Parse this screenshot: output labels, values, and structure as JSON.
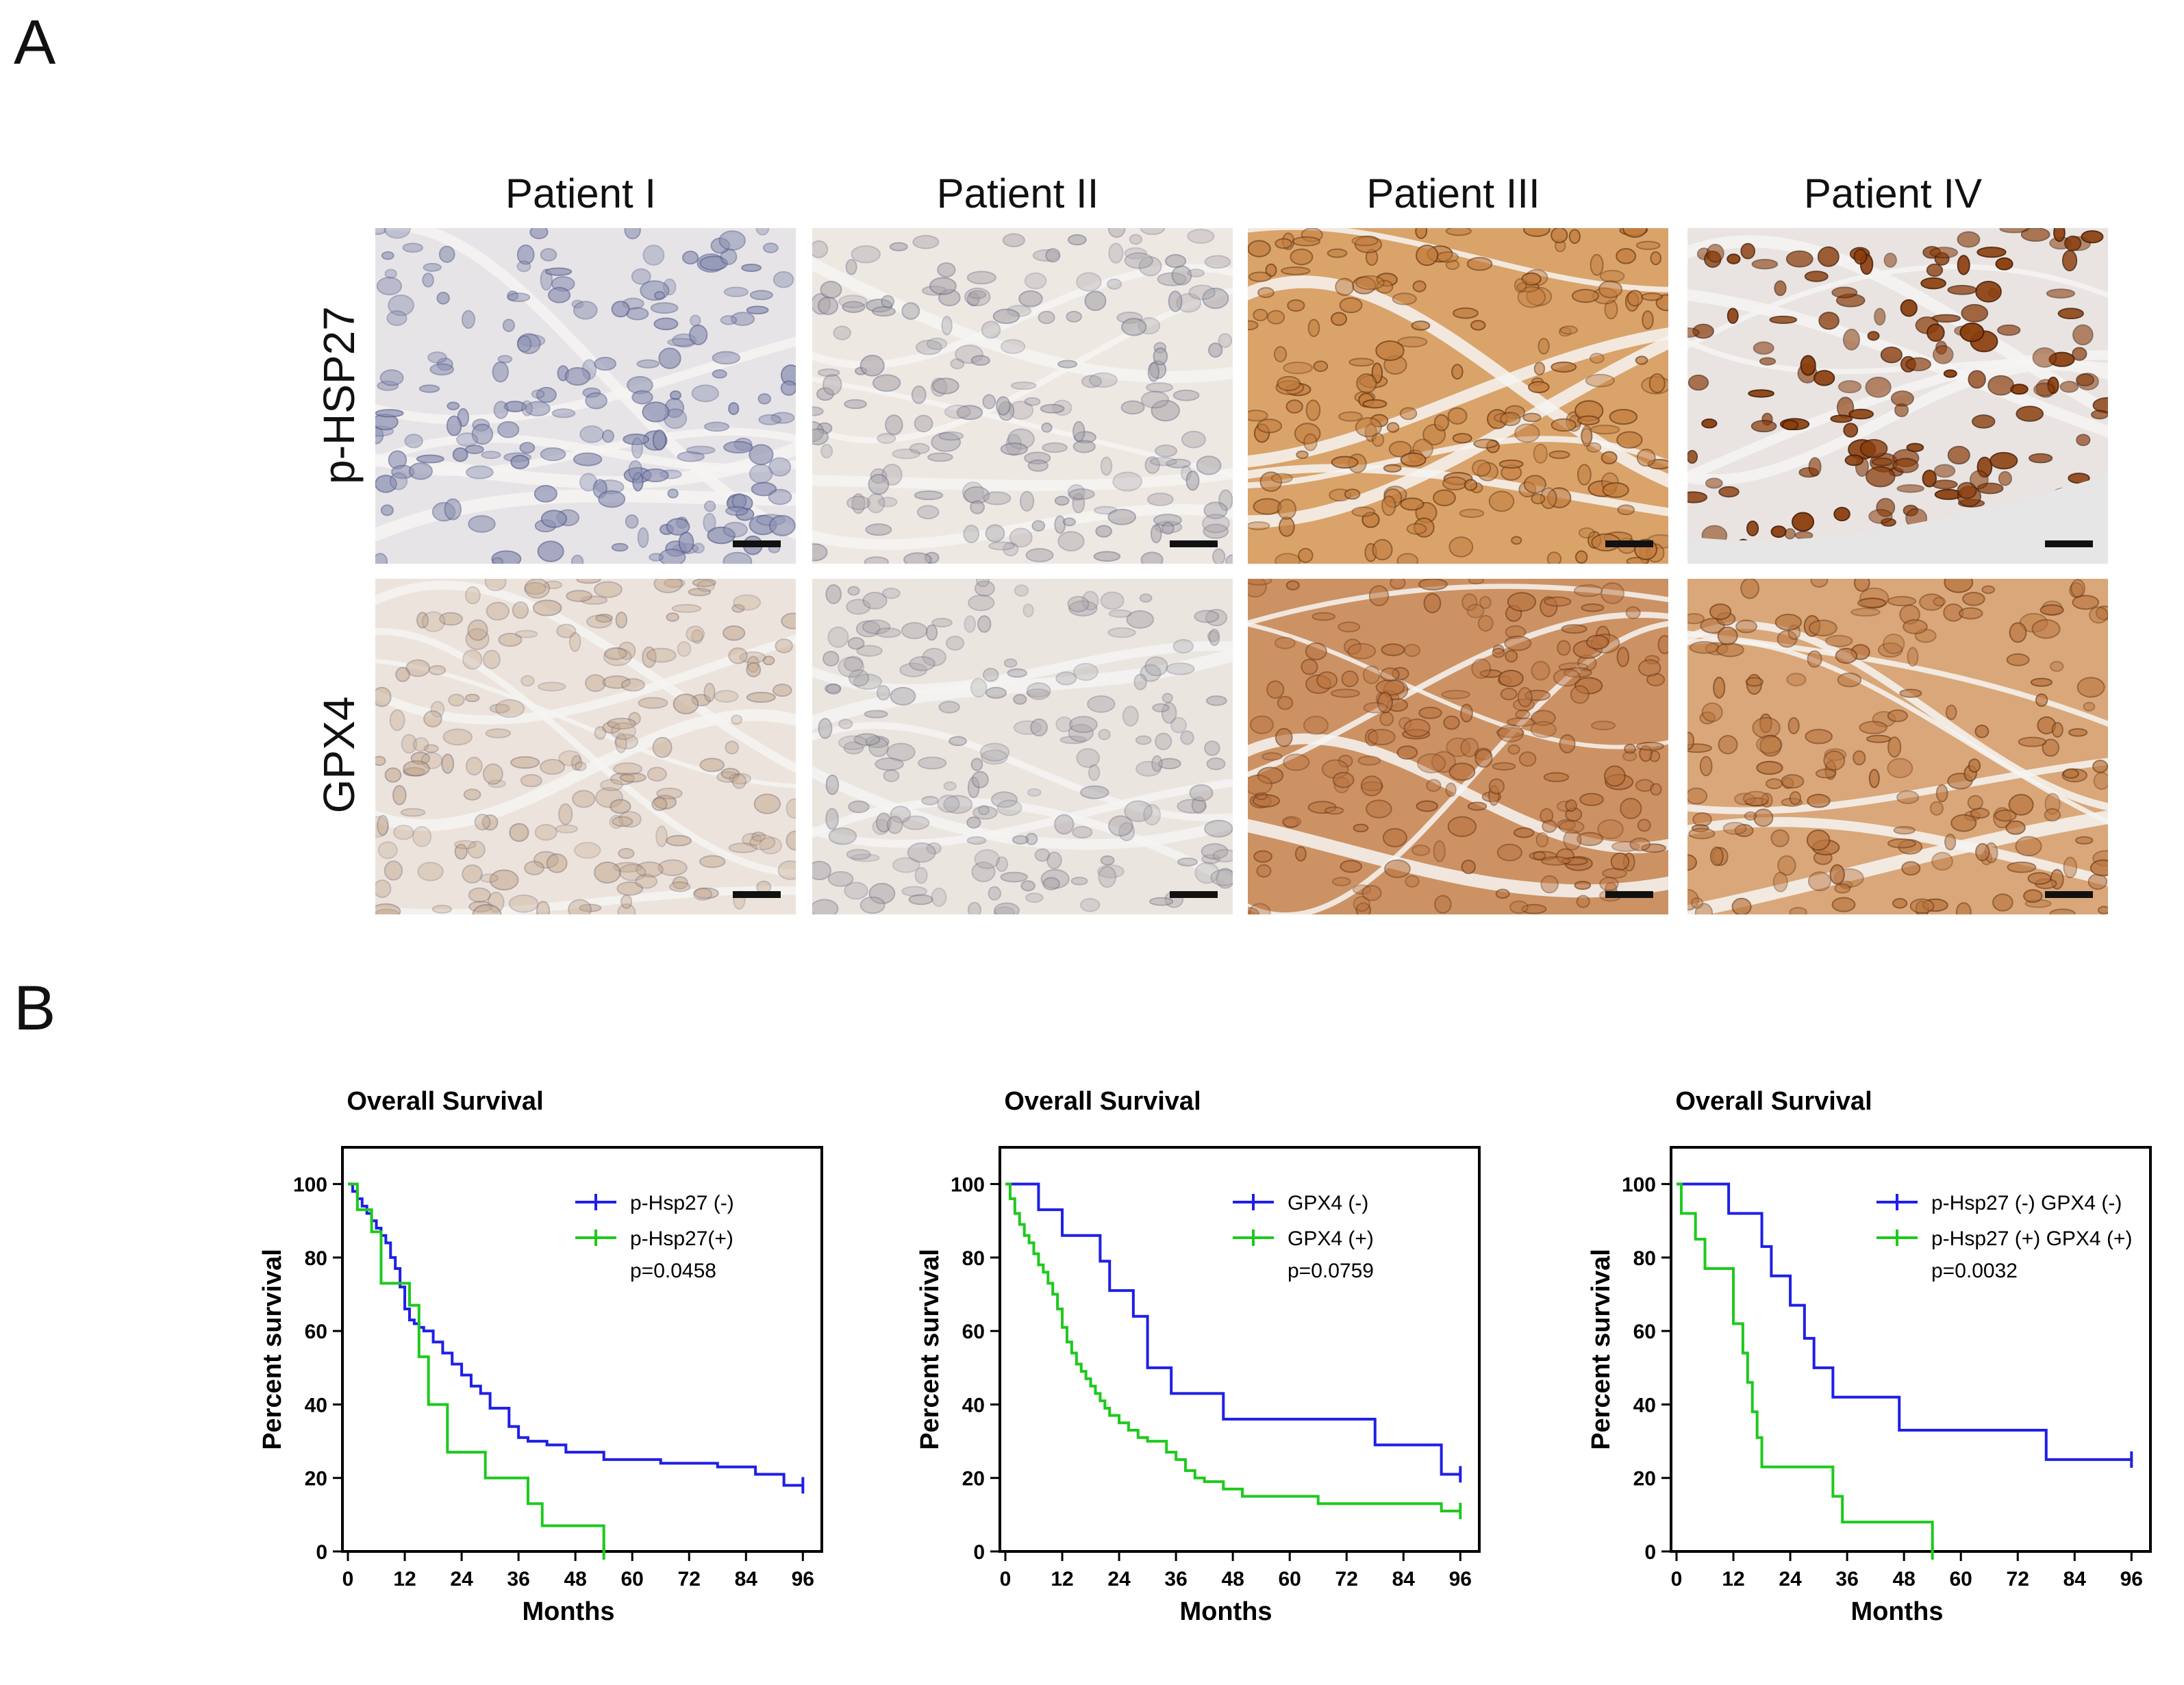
{
  "panel_a": {
    "letter": "A",
    "columns": [
      "Patient I",
      "Patient II",
      "Patient III",
      "Patient IV"
    ],
    "rows": [
      "p-HSP27",
      "GPX4"
    ]
  },
  "panel_b": {
    "letter": "B"
  },
  "chart_data": [
    {
      "type": "line",
      "title": "Overall Survival",
      "xlabel": "Months",
      "ylabel": "Percent survival",
      "xlim": [
        0,
        96
      ],
      "ylim": [
        0,
        100
      ],
      "xticks": [
        0,
        12,
        24,
        36,
        48,
        60,
        72,
        84,
        96
      ],
      "yticks": [
        0,
        20,
        40,
        60,
        80,
        100
      ],
      "legend": "top-right",
      "pvalue": "p=0.0458",
      "series": [
        {
          "name": "p-Hsp27 (-)",
          "color": "#1f1fe6",
          "x": [
            0,
            1,
            2,
            3,
            4,
            5,
            6,
            7,
            8,
            9,
            10,
            11,
            12,
            13,
            14,
            15,
            16,
            18,
            20,
            22,
            24,
            26,
            28,
            30,
            34,
            36,
            38,
            42,
            46,
            54,
            66,
            78,
            86,
            92,
            96
          ],
          "y": [
            100,
            98,
            96,
            94,
            92,
            90,
            88,
            86,
            84,
            80,
            77,
            72,
            66,
            63,
            62,
            61,
            60,
            57,
            54,
            51,
            48,
            45,
            43,
            39,
            34,
            31,
            30,
            29,
            27,
            25,
            24,
            23,
            21,
            18,
            18
          ]
        },
        {
          "name": "p-Hsp27(+)",
          "color": "#1ec91e",
          "x": [
            0,
            2,
            5,
            7,
            13,
            15,
            17,
            21,
            29,
            38,
            41,
            54
          ],
          "y": [
            100,
            93,
            87,
            73,
            67,
            53,
            40,
            27,
            20,
            13,
            7,
            0
          ]
        }
      ]
    },
    {
      "type": "line",
      "title": "Overall Survival",
      "xlabel": "Months",
      "ylabel": "Percent survival",
      "xlim": [
        0,
        96
      ],
      "ylim": [
        0,
        100
      ],
      "xticks": [
        0,
        12,
        24,
        36,
        48,
        60,
        72,
        84,
        96
      ],
      "yticks": [
        0,
        20,
        40,
        60,
        80,
        100
      ],
      "legend": "top-right",
      "pvalue": "p=0.0759",
      "series": [
        {
          "name": "GPX4 (-)",
          "color": "#1f1fe6",
          "x": [
            0,
            7,
            12,
            20,
            22,
            27,
            30,
            35,
            46,
            78,
            92,
            96
          ],
          "y": [
            100,
            93,
            86,
            79,
            71,
            64,
            50,
            43,
            36,
            29,
            21,
            21
          ]
        },
        {
          "name": "GPX4 (+)",
          "color": "#1ec91e",
          "x": [
            0,
            1,
            2,
            3,
            4,
            5,
            6,
            7,
            8,
            9,
            10,
            11,
            12,
            13,
            14,
            15,
            16,
            17,
            18,
            19,
            20,
            21,
            22,
            24,
            26,
            28,
            30,
            34,
            36,
            38,
            40,
            42,
            46,
            50,
            66,
            84,
            92,
            96
          ],
          "y": [
            100,
            96,
            92,
            89,
            86,
            84,
            81,
            78,
            76,
            73,
            70,
            66,
            61,
            57,
            54,
            51,
            49,
            47,
            45,
            43,
            41,
            39,
            37,
            35,
            33,
            31,
            30,
            27,
            25,
            22,
            20,
            19,
            17,
            15,
            13,
            13,
            11,
            11
          ]
        }
      ]
    },
    {
      "type": "line",
      "title": "Overall Survival",
      "xlabel": "Months",
      "ylabel": "Percent survival",
      "xlim": [
        0,
        96
      ],
      "ylim": [
        0,
        100
      ],
      "xticks": [
        0,
        12,
        24,
        36,
        48,
        60,
        72,
        84,
        96
      ],
      "yticks": [
        0,
        20,
        40,
        60,
        80,
        100
      ],
      "legend": "top-right",
      "pvalue": "p=0.0032",
      "series": [
        {
          "name": "p-Hsp27 (-) GPX4 (-)",
          "color": "#1f1fe6",
          "x": [
            0,
            11,
            18,
            20,
            24,
            27,
            29,
            33,
            36,
            47,
            78,
            90,
            96
          ],
          "y": [
            100,
            92,
            83,
            75,
            67,
            58,
            50,
            42,
            42,
            33,
            25,
            25,
            25
          ]
        },
        {
          "name": "p-Hsp27 (+) GPX4 (+)",
          "color": "#1ec91e",
          "x": [
            0,
            1,
            4,
            6,
            12,
            14,
            15,
            16,
            17,
            18,
            20,
            33,
            35,
            38,
            54
          ],
          "y": [
            100,
            92,
            85,
            77,
            62,
            54,
            46,
            38,
            31,
            23,
            23,
            15,
            8,
            8,
            0
          ]
        }
      ]
    }
  ],
  "colors": {
    "axis": "#000000",
    "neg": "#1f1fe6",
    "pos": "#1ec91e",
    "hematoxylin": "#7a7fa8",
    "dab_dark": "#8a3d0c",
    "dab_light": "#c88850",
    "background_tissue": "#ebe6e2"
  }
}
